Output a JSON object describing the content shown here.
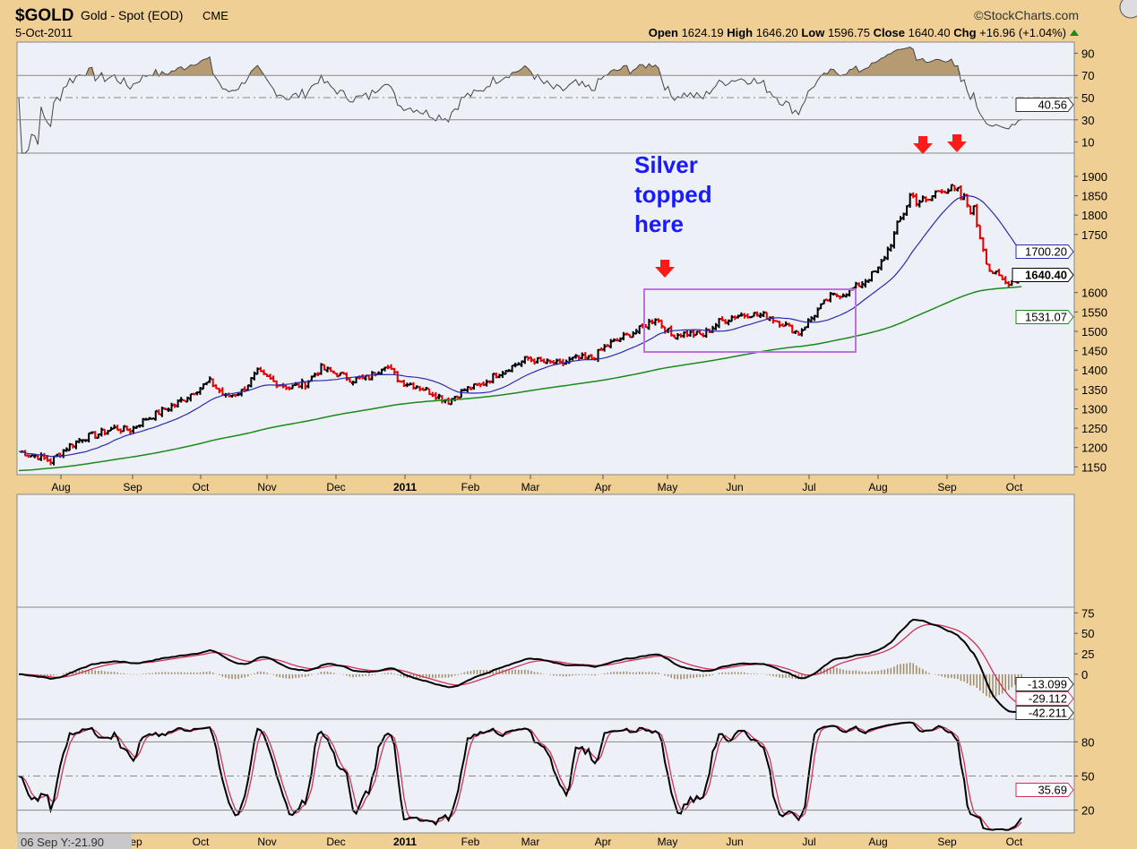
{
  "header": {
    "symbol": "$GOLD",
    "name": "Gold - Spot (EOD)",
    "exchange": "CME",
    "date": "5-Oct-2011",
    "brand": "©StockCharts.com",
    "open_label": "Open",
    "open": "1624.19",
    "high_label": "High",
    "high": "1646.20",
    "low_label": "Low",
    "low": "1596.75",
    "close_label": "Close",
    "close": "1640.40",
    "chg_label": "Chg",
    "chg": "+16.96 (+1.04%)",
    "chg_icon": "triangle-up-icon"
  },
  "colors": {
    "background": "#efcf93",
    "plot": "#eef0f8",
    "up": "#000000",
    "down": "#e00000",
    "ma_fast": "#2a2ab0",
    "ma_slow": "#1a8a1a",
    "signal": "#d0305a",
    "annotation": "#1a1aff",
    "box": "#c070e0",
    "arrow": "#ff1a1a"
  },
  "tooltip": "06 Sep Y:-21.90",
  "annotation": {
    "line1": "Silver",
    "line2": "topped",
    "line3": "here"
  },
  "chart_data": [
    {
      "type": "line",
      "name": "RSI",
      "ticks": [
        "90",
        "70",
        "50",
        "30",
        "10"
      ],
      "tick_values": [
        90,
        70,
        50,
        30,
        10
      ],
      "ylim": [
        0,
        100
      ],
      "last": "40.56"
    },
    {
      "type": "ohlc",
      "name": "Price",
      "ylim": [
        1130,
        1960
      ],
      "ticks": [
        "1900",
        "1850",
        "1800",
        "1750",
        "1600",
        "1550",
        "1500",
        "1450",
        "1400",
        "1350",
        "1300",
        "1250",
        "1200",
        "1150"
      ],
      "tick_values": [
        1900,
        1850,
        1800,
        1750,
        1600,
        1550,
        1500,
        1450,
        1400,
        1350,
        1300,
        1250,
        1200,
        1150
      ],
      "weekly_close": [
        1190,
        1180,
        1165,
        1200,
        1225,
        1235,
        1250,
        1245,
        1275,
        1295,
        1315,
        1345,
        1370,
        1330,
        1345,
        1395,
        1370,
        1355,
        1365,
        1405,
        1390,
        1375,
        1380,
        1415,
        1370,
        1360,
        1340,
        1320,
        1350,
        1360,
        1390,
        1410,
        1430,
        1420,
        1415,
        1430,
        1430,
        1465,
        1485,
        1505,
        1535,
        1490,
        1495,
        1490,
        1525,
        1540,
        1545,
        1540,
        1520,
        1495,
        1545,
        1590,
        1600,
        1625,
        1660,
        1745,
        1850,
        1830,
        1875,
        1855,
        1810,
        1660,
        1625,
        1640
      ],
      "ma_fast_last": "1700.20",
      "close_last": "1640.40",
      "ma_slow_last": "1531.07",
      "x_labels": [
        "Aug",
        "Sep",
        "Oct",
        "Nov",
        "Dec",
        "2011",
        "Feb",
        "Mar",
        "Apr",
        "May",
        "Jun",
        "Jul",
        "Aug",
        "Sep",
        "Oct"
      ]
    },
    {
      "type": "line",
      "name": "MACD",
      "ticks": [
        "75",
        "50",
        "25",
        "0"
      ],
      "tick_values": [
        75,
        50,
        25,
        0
      ],
      "ylim": [
        -55,
        82
      ],
      "values_last": [
        "-13.099",
        "-29.112",
        "-42.211"
      ]
    },
    {
      "type": "line",
      "name": "Stochastic",
      "ticks": [
        "80",
        "50",
        "20"
      ],
      "tick_values": [
        80,
        50,
        20
      ],
      "ylim": [
        0,
        100
      ],
      "last": "35.69",
      "x_labels": [
        "Sep",
        "Oct",
        "Nov",
        "Dec",
        "2011",
        "Feb",
        "Mar",
        "Apr",
        "May",
        "Jun",
        "Jul",
        "Aug",
        "Sep",
        "Oct"
      ]
    }
  ]
}
